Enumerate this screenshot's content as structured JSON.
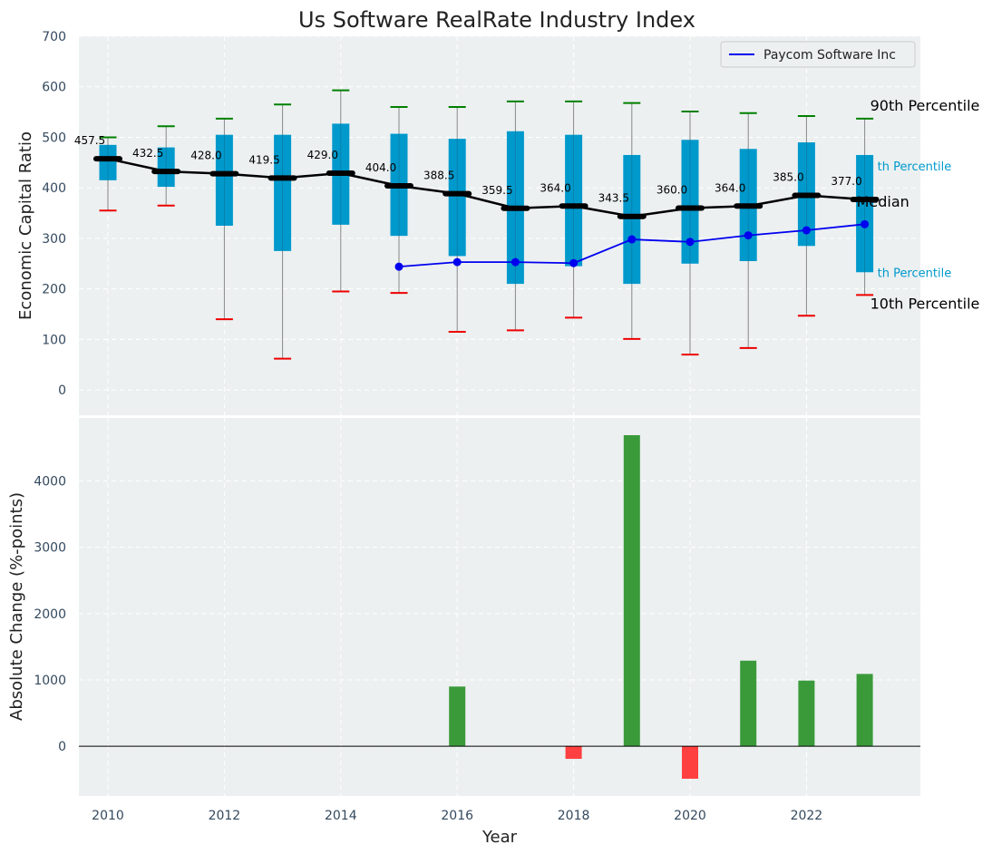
{
  "chart_data": {
    "title": "Us Software RealRate Industry Index",
    "xlabel": "Year",
    "x_ticks": [
      2010,
      2012,
      2014,
      2016,
      2018,
      2020,
      2022
    ],
    "top_panel": {
      "type": "box",
      "ylabel": "Economic Capital Ratio",
      "ylim": [
        -50,
        700
      ],
      "y_ticks": [
        0,
        100,
        200,
        300,
        400,
        500,
        600,
        700
      ],
      "grid": true,
      "years": [
        2010,
        2011,
        2012,
        2013,
        2014,
        2015,
        2016,
        2017,
        2018,
        2019,
        2020,
        2021,
        2022,
        2023
      ],
      "p10": [
        355,
        365,
        140,
        62,
        195,
        192,
        115,
        118,
        143,
        101,
        70,
        83,
        147,
        188
      ],
      "p25": [
        415,
        402,
        325,
        275,
        327,
        305,
        265,
        210,
        245,
        210,
        250,
        255,
        285,
        233
      ],
      "median": [
        457.5,
        432.5,
        428.0,
        419.5,
        429.0,
        404.0,
        388.5,
        359.5,
        364.0,
        343.5,
        360.0,
        364.0,
        385.0,
        377.0
      ],
      "median_labels": [
        "457.5",
        "432.5",
        "428.0",
        "419.5",
        "429.0",
        "404.0",
        "388.5",
        "359.5",
        "364.0",
        "343.5",
        "360.0",
        "364.0",
        "385.0",
        "377.0"
      ],
      "p75": [
        485,
        480,
        505,
        505,
        527,
        507,
        497,
        512,
        505,
        465,
        495,
        477,
        490,
        465
      ],
      "p90": [
        500,
        522,
        537,
        565,
        593,
        560,
        560,
        571,
        571,
        568,
        551,
        548,
        542,
        537
      ],
      "series": [
        {
          "name": "Paycom Software Inc",
          "x": [
            2015,
            2016,
            2017,
            2018,
            2019,
            2020,
            2021,
            2022,
            2023
          ],
          "values": [
            244,
            253,
            253,
            251,
            298,
            293,
            306,
            316,
            328
          ]
        }
      ],
      "legend_position": "top-right",
      "annotations": {
        "p90": "90th Percentile",
        "p75": "th Percentile",
        "median": "Median",
        "p25": "th Percentile",
        "p10": "10th Percentile"
      }
    },
    "bottom_panel": {
      "type": "bar",
      "ylabel": "Absolute Change (%-points)",
      "ylim": [
        -750,
        4950
      ],
      "y_ticks": [
        0,
        1000,
        2000,
        3000,
        4000
      ],
      "grid": true,
      "x": [
        2016,
        2018,
        2019,
        2020,
        2021,
        2022,
        2023
      ],
      "values": [
        900,
        -190,
        4690,
        -490,
        1290,
        990,
        1090
      ]
    },
    "colors": {
      "box": "#0099cc",
      "median_line": "#000000",
      "company_line": "#0000ee",
      "p90_cap": "#008000",
      "p10_cap": "#ee0000",
      "bar_positive": "#3a9a3a",
      "bar_negative": "#ff4040",
      "panel_bg": "#ecf0f1",
      "grid": "#ffffff"
    }
  }
}
